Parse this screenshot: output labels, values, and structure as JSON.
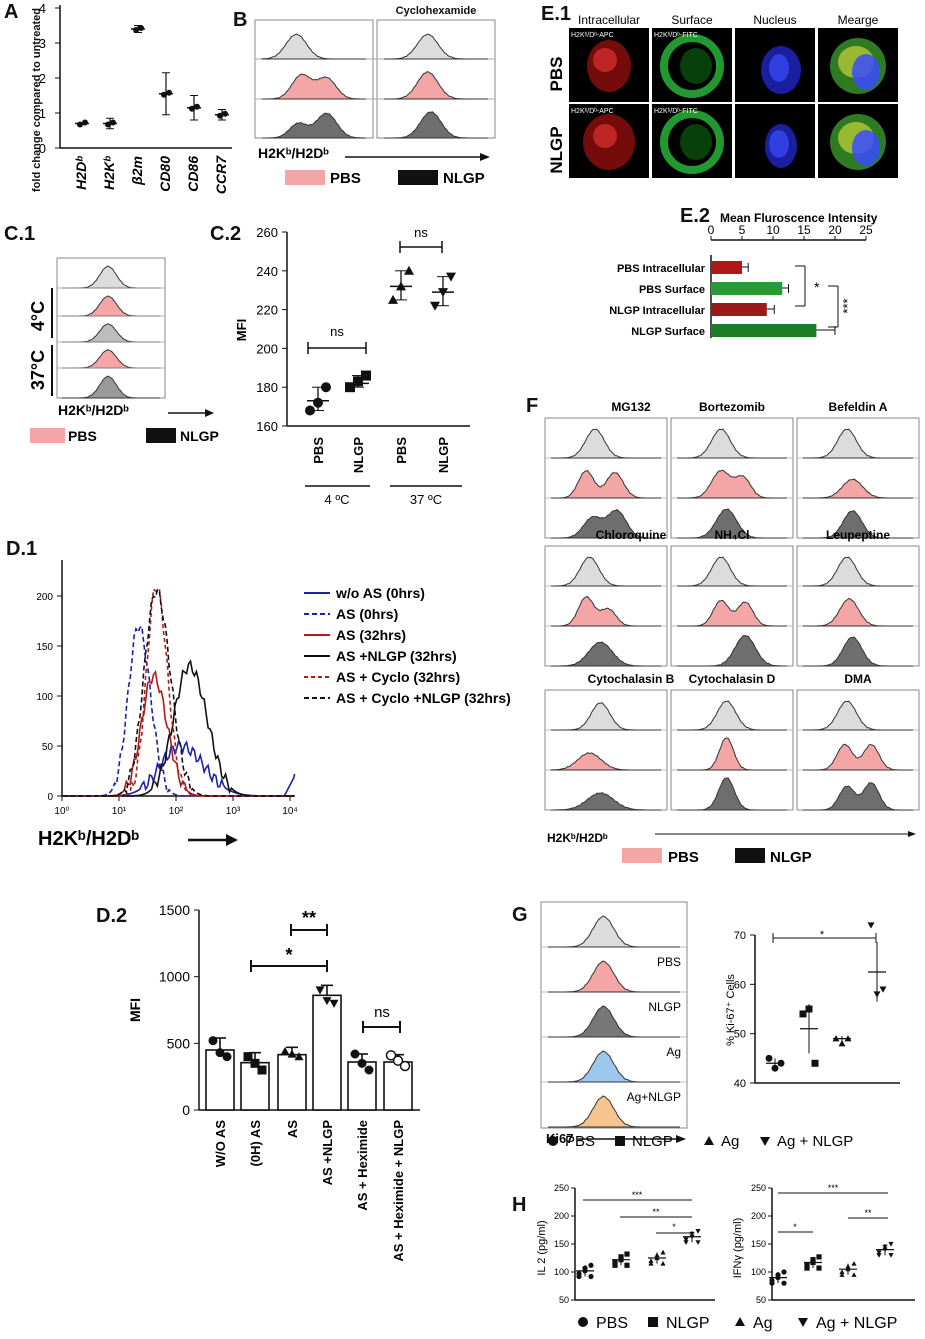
{
  "panels": {
    "A": {
      "label": "A",
      "ylabel": "fold change compared to untreated",
      "yticks": [
        "0",
        "1",
        "2",
        "3",
        "4"
      ],
      "categories": [
        "H2Dᵇ",
        "H2Kᵇ",
        "β2m",
        "CD80",
        "CD86",
        "CCR7"
      ]
    },
    "B": {
      "label": "B",
      "right_title": "Cyclohexamide",
      "xlabel": "H2Kᵇ/H2Dᵇ",
      "legend_pbs": "PBS",
      "legend_nlgp": "NLGP"
    },
    "C1": {
      "label": "C.1",
      "t1": "4°C",
      "t2": "37°C",
      "xlabel": "H2Kᵇ/H2Dᵇ",
      "legend_pbs": "PBS",
      "legend_nlgp": "NLGP"
    },
    "C2": {
      "label": "C.2",
      "ylabel": "MFI",
      "yticks": [
        "160",
        "180",
        "200",
        "220",
        "240",
        "260"
      ],
      "xcats": [
        "PBS",
        "NLGP",
        "PBS",
        "NLGP"
      ],
      "temps": [
        "4 ºC",
        "37 ºC"
      ],
      "sig": [
        "ns",
        "ns"
      ]
    },
    "D1": {
      "label": "D.1",
      "xlabel": "H2Kᵇ/H2Dᵇ",
      "yticks": [
        "0",
        "50",
        "100",
        "150",
        "200"
      ],
      "xticks": [
        "10⁰",
        "10¹",
        "10²",
        "10³",
        "10⁴"
      ],
      "legend": [
        "w/o AS (0hrs)",
        "AS (0hrs)",
        "AS (32hrs)",
        "AS +NLGP (32hrs)",
        "AS + Cyclo (32hrs)",
        "AS + Cyclo +NLGP (32hrs)"
      ]
    },
    "D2": {
      "label": "D.2",
      "ylabel": "MFI",
      "yticks": [
        "0",
        "500",
        "1000",
        "1500"
      ],
      "categories": [
        "W/O AS",
        "(0H) AS",
        "AS",
        "AS +NLGP",
        "AS + Heximide",
        "AS + Heximide + NLGP"
      ],
      "sig": [
        "**",
        "*",
        "ns"
      ]
    },
    "E1": {
      "label": "E.1",
      "cols": [
        "Intracellular",
        "Surface",
        "Nucleus",
        "Mearge"
      ],
      "rows": [
        "PBS",
        "NLGP"
      ],
      "tag_apc": "H2Kᵇ/Dᵇ-APC",
      "tag_fitc": "H2Kᵇ/Dᵇ-FITC"
    },
    "E2": {
      "label": "E.2",
      "title": "Mean Fluroscence Intensity",
      "xticks": [
        "0",
        "5",
        "10",
        "15",
        "20",
        "25"
      ],
      "categories": [
        "PBS Intracellular",
        "PBS Surface",
        "NLGP Intracellular",
        "NLGP Surface"
      ],
      "sig": [
        "*",
        "***"
      ]
    },
    "F": {
      "label": "F",
      "titles": [
        "MG132",
        "Bortezomib",
        "Befeldin A",
        "Chloroquine",
        "NH₄Cl",
        "Leupeptine",
        "Cytochalasin B",
        "Cytochalasin D",
        "DMA"
      ],
      "xlabel": "H2Kᵇ/H2Dᵇ",
      "legend_pbs": "PBS",
      "legend_nlgp": "NLGP"
    },
    "G": {
      "label": "G",
      "hist_labels": [
        "PBS",
        "NLGP",
        "Ag",
        "Ag+NLGP"
      ],
      "xlabel": "Ki67",
      "ylabel": "% Ki-67⁺ Cells",
      "yticks": [
        "40",
        "50",
        "60",
        "70"
      ],
      "sig": "*",
      "legend": [
        "PBS",
        "NLGP",
        "Ag",
        "Ag + NLGP"
      ]
    },
    "H": {
      "label": "H",
      "left_ylabel": "IL 2 (pg/ml)",
      "right_ylabel": "IFNγ (pg/ml)",
      "yticks": [
        "50",
        "100",
        "150",
        "200",
        "250"
      ],
      "left_sig": [
        "***",
        "**",
        "*"
      ],
      "right_sig": [
        "***",
        "*",
        "**"
      ],
      "legend": [
        "PBS",
        "NLGP",
        "Ag",
        "Ag + NLGP"
      ]
    }
  },
  "chart_data": [
    {
      "type": "scatter",
      "title": "A",
      "ylabel": "fold change compared to untreated",
      "categories": [
        "H2Db",
        "H2Kb",
        "b2m",
        "CD80",
        "CD86",
        "CCR7"
      ],
      "mean": [
        0.7,
        0.7,
        3.4,
        1.55,
        1.15,
        0.95
      ],
      "sd": [
        0.02,
        0.15,
        0.1,
        0.6,
        0.35,
        0.15
      ],
      "ylim": [
        0,
        4
      ]
    },
    {
      "type": "scatter",
      "title": "C.2",
      "ylabel": "MFI",
      "categories": [
        "PBS 4C",
        "NLGP 4C",
        "PBS 37C",
        "NLGP 37C"
      ],
      "points": [
        [
          168,
          172,
          180
        ],
        [
          180,
          183,
          186
        ],
        [
          225,
          232,
          240
        ],
        [
          222,
          229,
          237
        ]
      ],
      "mean": [
        173,
        182,
        232,
        229
      ],
      "ylim": [
        160,
        260
      ]
    },
    {
      "type": "bar",
      "title": "D.2",
      "ylabel": "MFI",
      "categories": [
        "W/O AS",
        "(0H) AS",
        "AS",
        "AS +NLGP",
        "AS + Heximide",
        "AS + Heximide + NLGP"
      ],
      "values": [
        450,
        355,
        415,
        860,
        360,
        360
      ],
      "sem": [
        90,
        75,
        55,
        75,
        60,
        55
      ],
      "ylim": [
        0,
        1500
      ]
    },
    {
      "type": "bar",
      "title": "E.2 Mean Fluroscence Intensity",
      "categories": [
        "PBS Intracellular",
        "PBS Surface",
        "NLGP Intracellular",
        "NLGP Surface"
      ],
      "values": [
        5,
        11.5,
        9,
        17
      ],
      "err": [
        1,
        1,
        1.2,
        3
      ],
      "xlim": [
        0,
        25
      ]
    },
    {
      "type": "scatter",
      "title": "G",
      "ylabel": "% Ki-67+ Cells",
      "categories": [
        "PBS",
        "NLGP",
        "Ag",
        "Ag + NLGP"
      ],
      "mean": [
        44,
        51,
        49,
        62.5
      ],
      "ylim": [
        40,
        70
      ]
    },
    {
      "type": "scatter",
      "title": "H IL 2",
      "ylabel": "IL 2 (pg/ml)",
      "categories": [
        "PBS",
        "NLGP",
        "Ag",
        "Ag + NLGP"
      ],
      "mean": [
        102,
        122,
        125,
        163
      ],
      "ylim": [
        50,
        250
      ]
    },
    {
      "type": "scatter",
      "title": "H IFNg",
      "ylabel": "IFNg (pg/ml)",
      "categories": [
        "PBS",
        "NLGP",
        "Ag",
        "Ag + NLGP"
      ],
      "mean": [
        90,
        117,
        105,
        140
      ],
      "ylim": [
        50,
        250
      ]
    },
    {
      "type": "line",
      "title": "D.1",
      "xlabel": "H2Kb/H2Db",
      "ylim": [
        0,
        230
      ],
      "xlim": [
        1,
        10000
      ],
      "scale": "log",
      "series": [
        {
          "name": "w/o AS (0hrs)",
          "peak_x": 120,
          "peak_y": 50
        },
        {
          "name": "AS (0hrs)",
          "peak_x": 22,
          "peak_y": 170
        },
        {
          "name": "AS (32hrs)",
          "peak_x": 40,
          "peak_y": 120
        },
        {
          "name": "AS +NLGP (32hrs)",
          "peak_x": 170,
          "peak_y": 130
        },
        {
          "name": "AS + Cyclo (32hrs)",
          "peak_x": 45,
          "peak_y": 210
        },
        {
          "name": "AS + Cyclo +NLGP (32hrs)",
          "peak_x": 45,
          "peak_y": 205
        }
      ]
    }
  ]
}
